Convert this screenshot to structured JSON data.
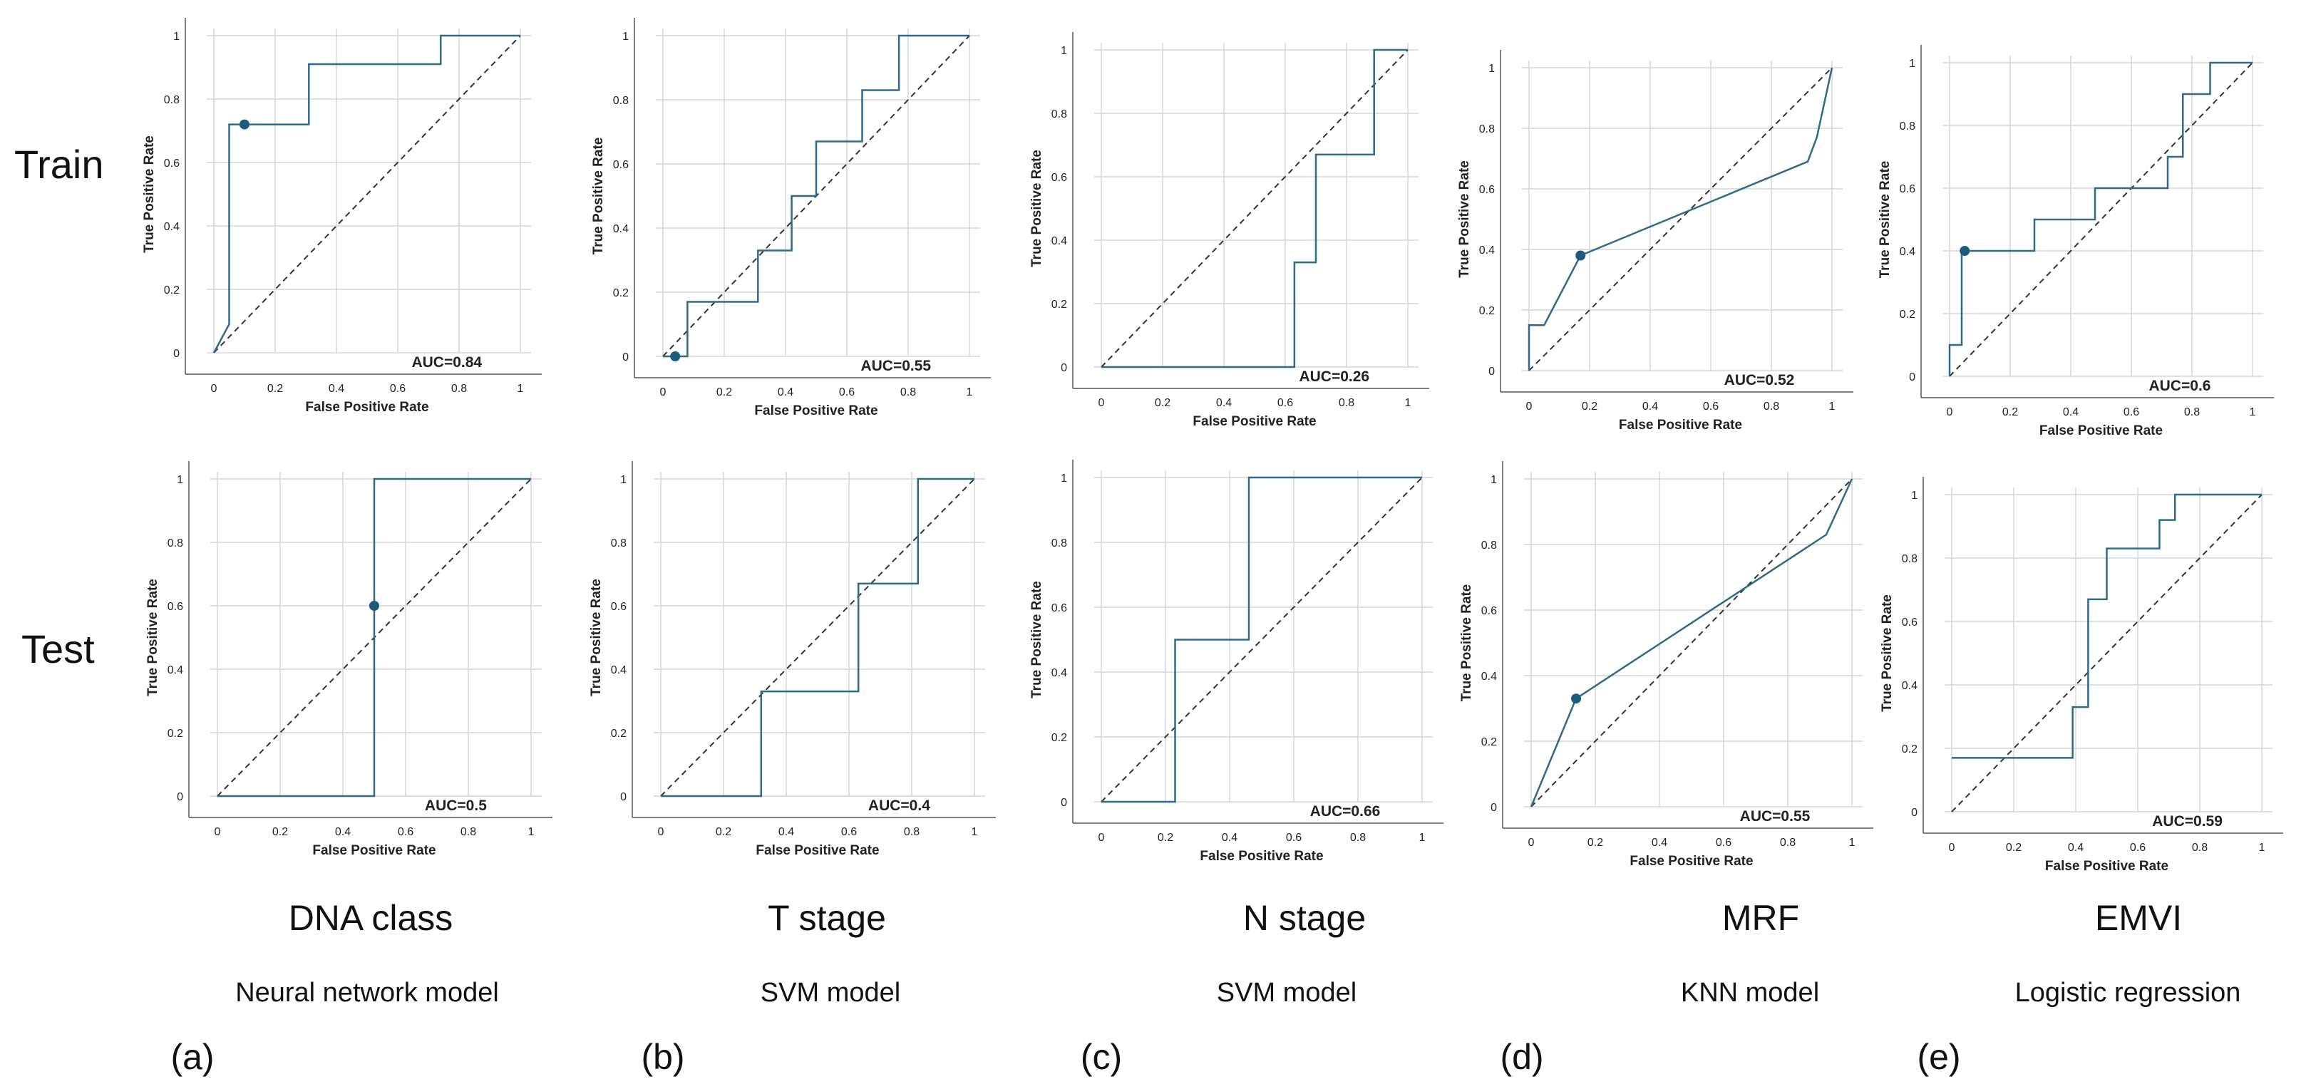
{
  "row_labels": [
    "Train",
    "Test"
  ],
  "columns": [
    {
      "letter": "(a)",
      "title": "DNA class",
      "model": "Neural network model"
    },
    {
      "letter": "(b)",
      "title": "T stage",
      "model": "SVM  model"
    },
    {
      "letter": "(c)",
      "title": "N stage",
      "model": "SVM  model"
    },
    {
      "letter": "(d)",
      "title": "MRF",
      "model": "KNN  model"
    },
    {
      "letter": "(e)",
      "title": "EMVI",
      "model": "Logistic regression"
    }
  ],
  "colors": {
    "roc": "#2f6b88",
    "point": "#1d5b7d",
    "diagonal": "#333333",
    "auc_e_test": "#8b2a2a"
  },
  "chart_data": [
    {
      "type": "line",
      "id": "a-train",
      "title": "",
      "xlabel": "False Positive Rate",
      "ylabel": "True Positive Rate",
      "xlim": [
        0,
        1
      ],
      "ylim": [
        0,
        1
      ],
      "ticks": [
        "0",
        "0.2",
        "0.4",
        "0.6",
        "0.8",
        "1"
      ],
      "auc_label": "AUC=0.84",
      "x": [
        0,
        0.05,
        0.05,
        0.31,
        0.31,
        0.74,
        0.74,
        1
      ],
      "y": [
        0,
        0.09,
        0.72,
        0.72,
        0.91,
        0.91,
        1,
        1
      ],
      "point": [
        0.1,
        0.72
      ]
    },
    {
      "type": "line",
      "id": "b-train",
      "title": "",
      "xlabel": "False Positive Rate",
      "ylabel": "True Positive Rate",
      "xlim": [
        0,
        1
      ],
      "ylim": [
        0,
        1
      ],
      "ticks": [
        "0",
        "0.2",
        "0.4",
        "0.6",
        "0.8",
        "1"
      ],
      "auc_label": "AUC=0.55",
      "x": [
        0,
        0.04,
        0.04,
        0.08,
        0.08,
        0.31,
        0.31,
        0.42,
        0.42,
        0.5,
        0.5,
        0.65,
        0.65,
        0.77,
        0.77,
        1
      ],
      "y": [
        0,
        0,
        0,
        0,
        0.17,
        0.17,
        0.33,
        0.33,
        0.5,
        0.5,
        0.67,
        0.67,
        0.83,
        0.83,
        1,
        1
      ],
      "point": [
        0.04,
        0
      ]
    },
    {
      "type": "line",
      "id": "c-train",
      "title": "",
      "xlabel": "False Positive Rate",
      "ylabel": "True Positive Rate",
      "xlim": [
        0,
        1
      ],
      "ylim": [
        0,
        1
      ],
      "ticks": [
        "0",
        "0.2",
        "0.4",
        "0.6",
        "0.8",
        "1"
      ],
      "auc_label": "AUC=0.26",
      "x": [
        0,
        0.63,
        0.63,
        0.7,
        0.7,
        0.89,
        0.89,
        1
      ],
      "y": [
        0,
        0,
        0.33,
        0.33,
        0.67,
        0.67,
        1,
        1
      ],
      "point": null
    },
    {
      "type": "line",
      "id": "d-train",
      "title": "",
      "xlabel": "False Positive Rate",
      "ylabel": "True Positive Rate",
      "xlim": [
        0,
        1
      ],
      "ylim": [
        0,
        1
      ],
      "ticks": [
        "0",
        "0.2",
        "0.4",
        "0.6",
        "0.8",
        "1"
      ],
      "auc_label": "AUC=0.52",
      "x": [
        0,
        0,
        0.05,
        0.17,
        0.92,
        0.95,
        1
      ],
      "y": [
        0,
        0.15,
        0.15,
        0.38,
        0.69,
        0.77,
        1
      ],
      "point": [
        0.17,
        0.38
      ]
    },
    {
      "type": "line",
      "id": "e-train",
      "title": "",
      "xlabel": "False Positive Rate",
      "ylabel": "True Positive Rate",
      "xlim": [
        0,
        1
      ],
      "ylim": [
        0,
        1
      ],
      "ticks": [
        "0",
        "0.2",
        "0.4",
        "0.6",
        "0.8",
        "1"
      ],
      "auc_label": "AUC=0.6",
      "x": [
        0,
        0,
        0.04,
        0.04,
        0.28,
        0.28,
        0.48,
        0.48,
        0.72,
        0.72,
        0.77,
        0.77,
        0.86,
        0.86,
        1
      ],
      "y": [
        0,
        0.1,
        0.1,
        0.4,
        0.4,
        0.5,
        0.5,
        0.6,
        0.6,
        0.7,
        0.7,
        0.9,
        0.9,
        1,
        1
      ],
      "point": [
        0.05,
        0.4
      ]
    },
    {
      "type": "line",
      "id": "a-test",
      "title": "",
      "xlabel": "False Positive Rate",
      "ylabel": "True Positive Rate",
      "xlim": [
        0,
        1
      ],
      "ylim": [
        0,
        1
      ],
      "ticks": [
        "0",
        "0.2",
        "0.4",
        "0.6",
        "0.8",
        "1"
      ],
      "auc_label": "AUC=0.5",
      "x": [
        0,
        0.5,
        0.5,
        1
      ],
      "y": [
        0,
        0,
        1,
        1
      ],
      "point": [
        0.5,
        0.6
      ]
    },
    {
      "type": "line",
      "id": "b-test",
      "title": "",
      "xlabel": "False Positive Rate",
      "ylabel": "True Positive Rate",
      "xlim": [
        0,
        1
      ],
      "ylim": [
        0,
        1
      ],
      "ticks": [
        "0",
        "0.2",
        "0.4",
        "0.6",
        "0.8",
        "1"
      ],
      "auc_label": "AUC=0.4",
      "x": [
        0,
        0.32,
        0.32,
        0.63,
        0.63,
        0.82,
        0.82,
        1
      ],
      "y": [
        0,
        0,
        0.33,
        0.33,
        0.67,
        0.67,
        1,
        1
      ],
      "point": null
    },
    {
      "type": "line",
      "id": "c-test",
      "title": "",
      "xlabel": "False Positive Rate",
      "ylabel": "True Positive Rate",
      "xlim": [
        0,
        1
      ],
      "ylim": [
        0,
        1
      ],
      "ticks": [
        "0",
        "0.2",
        "0.4",
        "0.6",
        "0.8",
        "1"
      ],
      "auc_label": "AUC=0.66",
      "x": [
        0,
        0.23,
        0.23,
        0.46,
        0.46,
        1
      ],
      "y": [
        0,
        0,
        0.5,
        0.5,
        1,
        1
      ],
      "point": null
    },
    {
      "type": "line",
      "id": "d-test",
      "title": "",
      "xlabel": "False Positive Rate",
      "ylabel": "True Positive Rate",
      "xlim": [
        0,
        1
      ],
      "ylim": [
        0,
        1
      ],
      "ticks": [
        "0",
        "0.2",
        "0.4",
        "0.6",
        "0.8",
        "1"
      ],
      "auc_label": "AUC=0.55",
      "x": [
        0,
        0.14,
        0.92,
        1
      ],
      "y": [
        0,
        0.33,
        0.83,
        1
      ],
      "point": [
        0.14,
        0.33
      ]
    },
    {
      "type": "line",
      "id": "e-test",
      "title": "",
      "xlabel": "False Positive Rate",
      "ylabel": "True Positive Rate",
      "xlim": [
        0,
        1
      ],
      "ylim": [
        0,
        1
      ],
      "ticks": [
        "0",
        "0.2",
        "0.4",
        "0.6",
        "0.8",
        "1"
      ],
      "auc_label": "AUC=0.59",
      "x": [
        0,
        0.39,
        0.39,
        0.44,
        0.44,
        0.5,
        0.5,
        0.67,
        0.67,
        0.72,
        0.72,
        1
      ],
      "y": [
        0.17,
        0.17,
        0.33,
        0.33,
        0.67,
        0.67,
        0.83,
        0.83,
        0.92,
        0.92,
        1,
        1
      ],
      "point": null
    }
  ]
}
